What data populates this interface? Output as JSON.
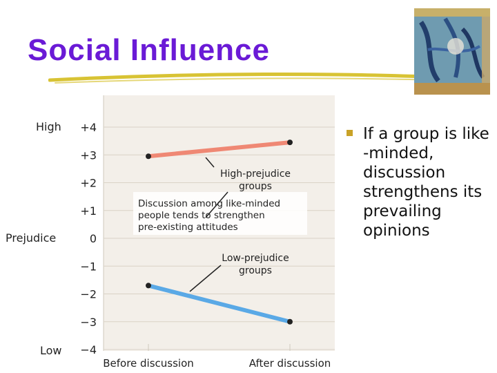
{
  "slide": {
    "title": "Social Influence",
    "title_color": "#6a1ad6",
    "underline_color": "#d4bc1e"
  },
  "bullets": [
    {
      "text": "If a group is like-minded, discussion strengthens its prevailing opinions"
    }
  ],
  "bullet_lines": [
    "If a group is like",
    "-minded,",
    "discussion",
    "strengthens its",
    "prevailing",
    "opinions"
  ],
  "bullet_marker_color": "#c9a227",
  "chart_data": {
    "type": "line",
    "x_categories": [
      "Before discussion",
      "After discussion"
    ],
    "ylabel": "Prejudice",
    "ylim": [
      -4,
      4
    ],
    "y_ticks": [
      "+4",
      "+3",
      "+2",
      "+1",
      "0",
      "−1",
      "−2",
      "−3",
      "−4"
    ],
    "y_tick_values": [
      4,
      3,
      2,
      1,
      0,
      -1,
      -2,
      -3,
      -4
    ],
    "y_end_labels": {
      "high": "High",
      "low": "Low"
    },
    "grid": "horizontal",
    "plot_background": "#f3efe9",
    "series": [
      {
        "name": "High-prejudice groups",
        "label_lines": [
          "High-prejudice",
          "groups"
        ],
        "values": [
          2.95,
          3.45
        ],
        "color": "#ef8874"
      },
      {
        "name": "Low-prejudice groups",
        "label_lines": [
          "Low-prejudice",
          "groups"
        ],
        "values": [
          -1.7,
          -3.0
        ],
        "color": "#5aa9e6"
      }
    ],
    "annotation": {
      "lines": [
        "Discussion among like-minded",
        "people tends to strengthen",
        "pre-existing attitudes"
      ]
    }
  }
}
